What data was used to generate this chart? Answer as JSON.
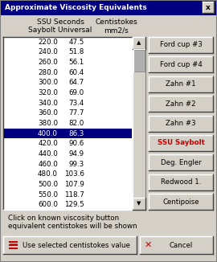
{
  "title": "Approximate Viscosity Equivalents",
  "col1_header_line1": "SSU Seconds",
  "col1_header_line2": "Saybolt Universal",
  "col2_header_line1": "Centistokes",
  "col2_header_line2": "mm2/s",
  "rows": [
    [
      220.0,
      47.5
    ],
    [
      240.0,
      51.8
    ],
    [
      260.0,
      56.1
    ],
    [
      280.0,
      60.4
    ],
    [
      300.0,
      64.7
    ],
    [
      320.0,
      69.0
    ],
    [
      340.0,
      73.4
    ],
    [
      360.0,
      77.7
    ],
    [
      380.0,
      82.0
    ],
    [
      400.0,
      86.3
    ],
    [
      420.0,
      90.6
    ],
    [
      440.0,
      94.9
    ],
    [
      460.0,
      99.3
    ],
    [
      480.0,
      103.6
    ],
    [
      500.0,
      107.9
    ],
    [
      550.0,
      118.7
    ],
    [
      600.0,
      129.5
    ]
  ],
  "selected_row": 9,
  "buttons": [
    "Ford cup #3",
    "Ford cup #4",
    "Zahn #1",
    "Zahn #2",
    "Zahn #3",
    "SSU Saybolt",
    "Deg. Engler",
    "Redwood 1.",
    "Centipoise"
  ],
  "active_button": "SSU Saybolt",
  "active_button_color": "#cc0000",
  "footer_line1": "Click on known viscosity button",
  "footer_line2": "equivalent centistokes will be shown",
  "ok_label": "Use selected centistokes value",
  "cancel_label": "Cancel",
  "bg_color": "#d4d0c8",
  "title_bg": "#000080",
  "title_fg": "#ffffff",
  "table_bg": "#ffffff",
  "selected_bg": "#000080",
  "selected_fg": "#ffffff",
  "button_bg": "#d4d0c8",
  "cancel_icon_color": "#cc0000"
}
